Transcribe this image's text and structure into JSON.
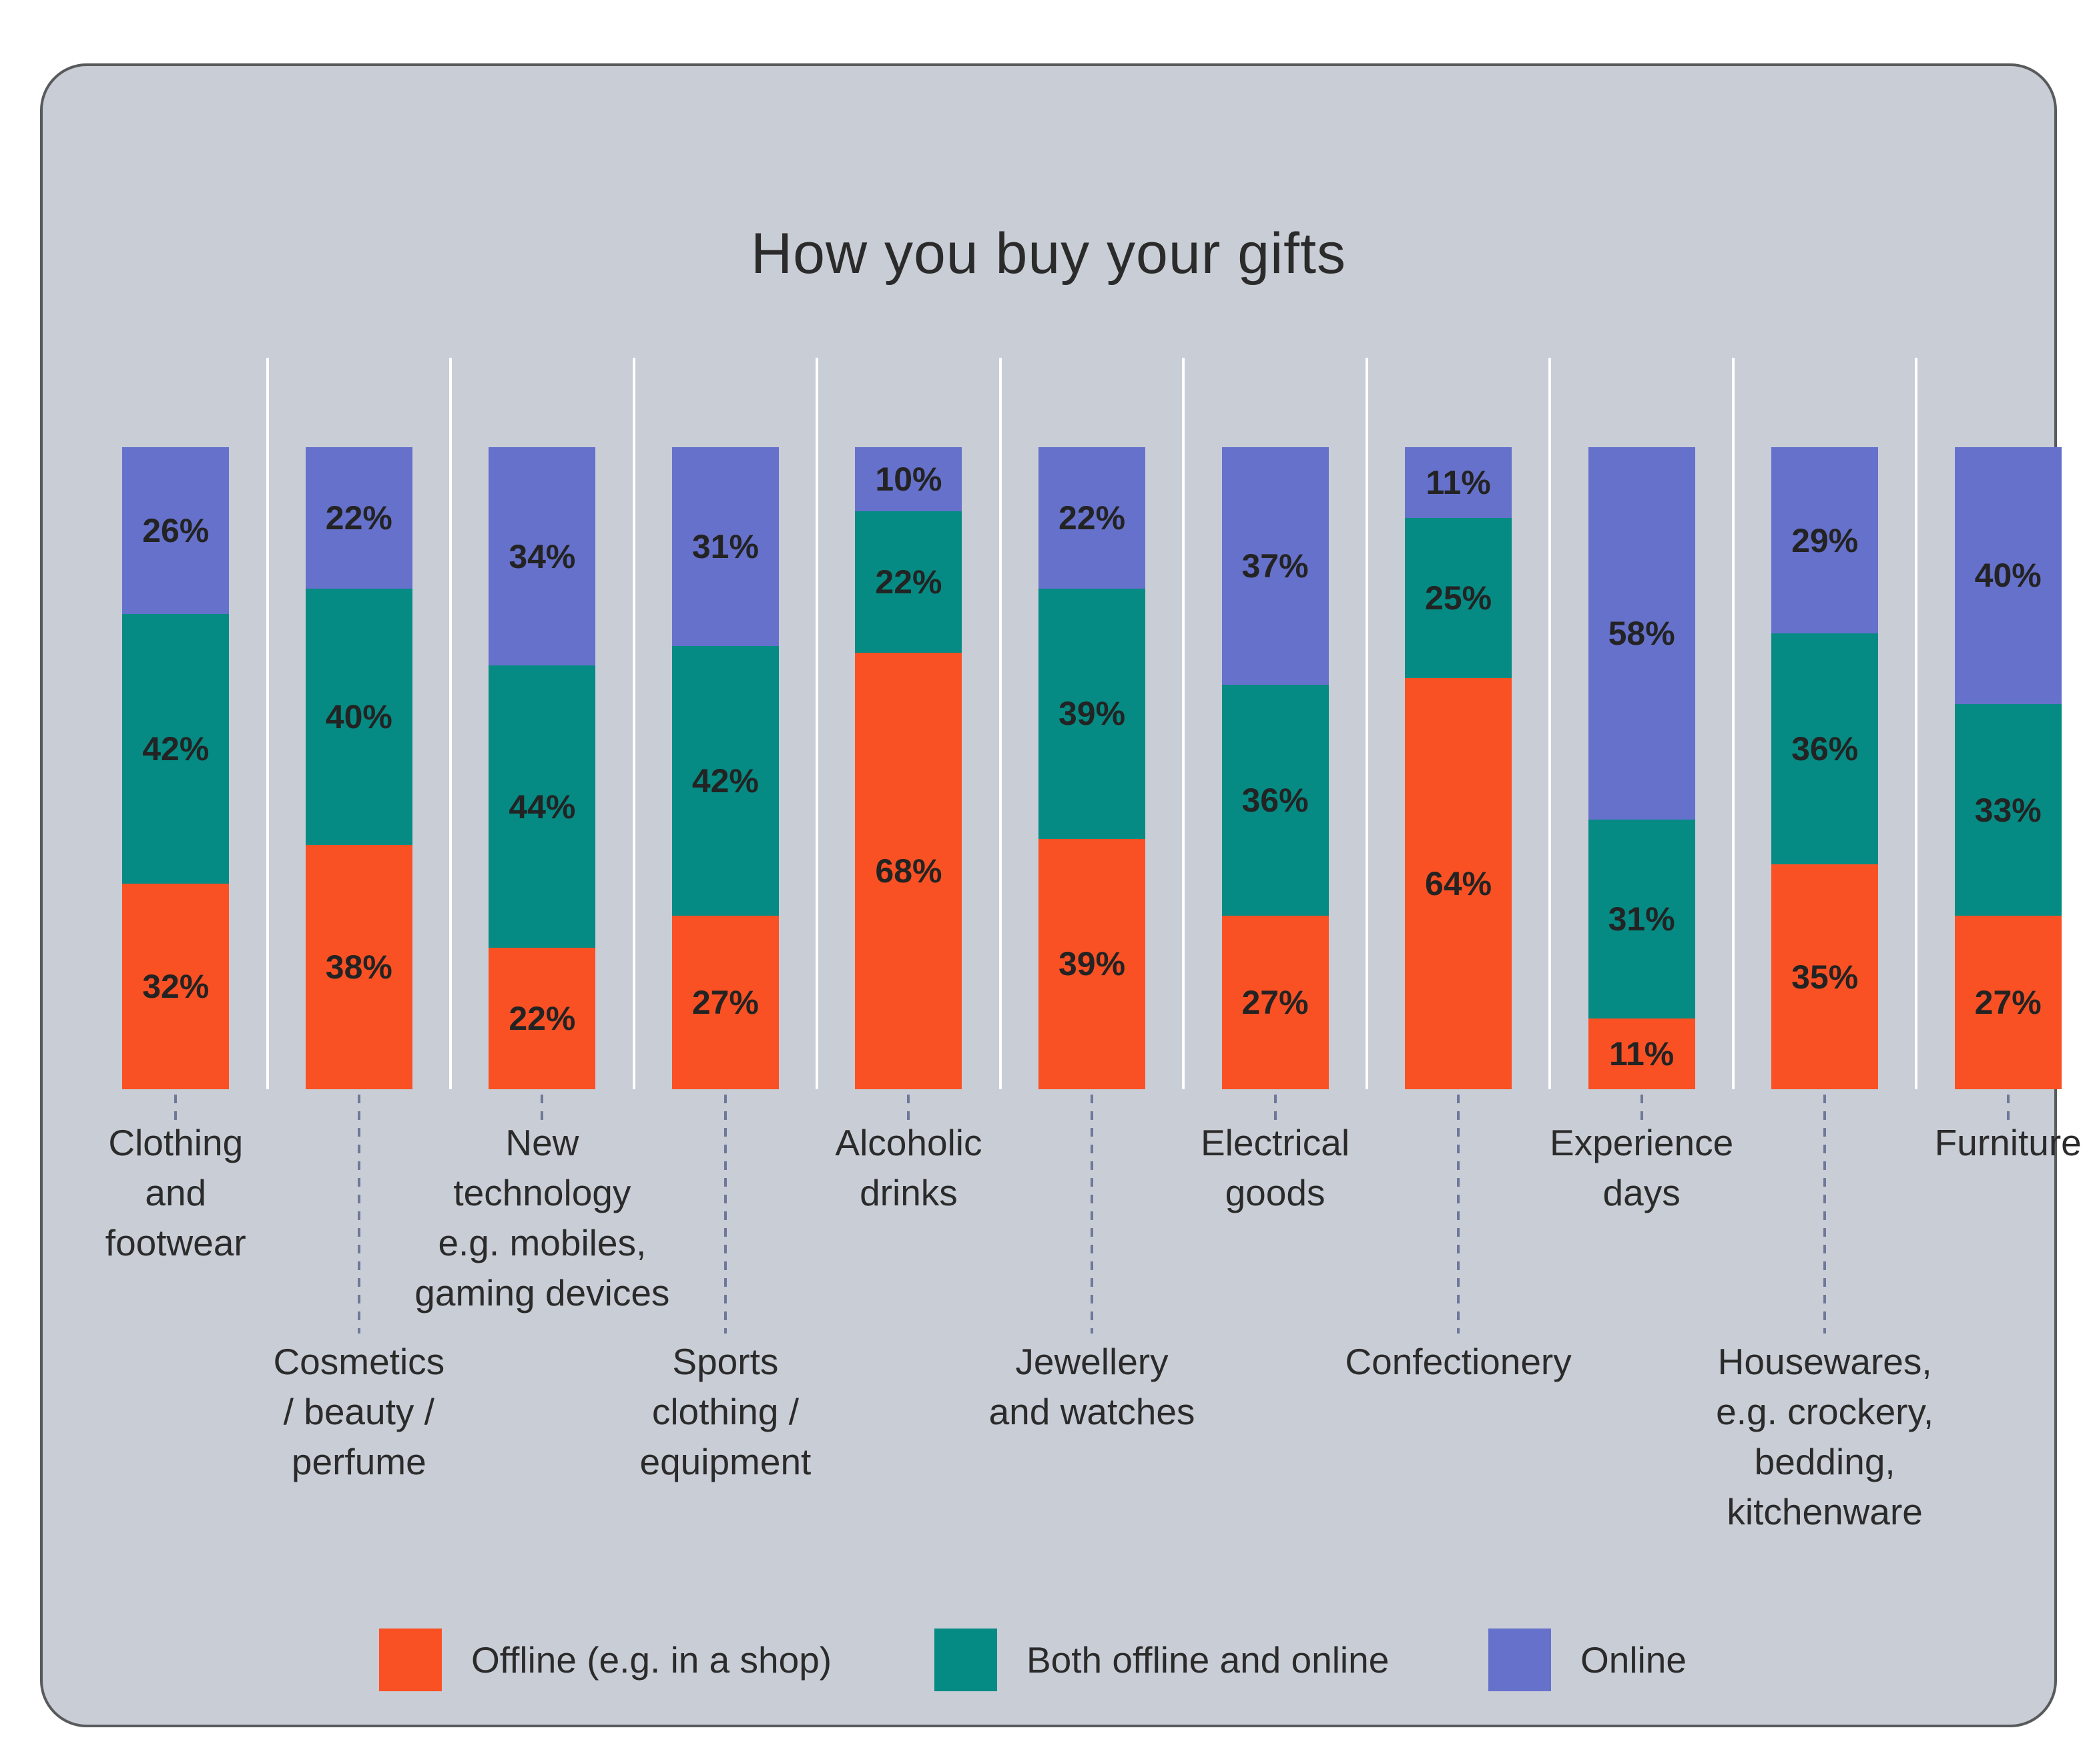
{
  "chart_data": {
    "type": "bar",
    "stacked": true,
    "percent_stacked": true,
    "title": "How you buy your gifts",
    "value_suffix": "%",
    "ylim": [
      0,
      100
    ],
    "grid": "vertical-white-separators",
    "legend_position": "bottom",
    "categories": [
      "Clothing and footwear",
      "Cosmetics / beauty / perfume",
      "New technology e.g. mobiles, gaming devices",
      "Sports clothing / equipment",
      "Alcoholic drinks",
      "Jewellery and watches",
      "Electrical goods",
      "Confectionery",
      "Experience days",
      "Housewares, e.g. crockery, bedding, kitchenware",
      "Furniture"
    ],
    "category_label_lines": [
      [
        "Clothing",
        "and",
        "footwear"
      ],
      [
        "Cosmetics",
        "/ beauty /",
        "perfume"
      ],
      [
        "New",
        "technology",
        "e.g. mobiles,",
        "gaming devices"
      ],
      [
        "Sports",
        "clothing /",
        "equipment"
      ],
      [
        "Alcoholic",
        "drinks"
      ],
      [
        "Jewellery",
        "and watches"
      ],
      [
        "Electrical",
        "goods"
      ],
      [
        "Confectionery"
      ],
      [
        "Experience",
        "days"
      ],
      [
        "Housewares,",
        "e.g. crockery,",
        "bedding,",
        "kitchenware"
      ],
      [
        "Furniture"
      ]
    ],
    "category_label_row": [
      1,
      2,
      1,
      2,
      1,
      2,
      1,
      2,
      1,
      2,
      1
    ],
    "series": [
      {
        "name": "Offline (e.g. in a shop)",
        "color": "#fa5124",
        "values": [
          32,
          38,
          22,
          27,
          68,
          39,
          27,
          64,
          11,
          35,
          27
        ]
      },
      {
        "name": "Both offline and online",
        "color": "#058b84",
        "values": [
          42,
          40,
          44,
          42,
          22,
          39,
          36,
          25,
          31,
          36,
          33
        ]
      },
      {
        "name": "Online",
        "color": "#6671cc",
        "values": [
          26,
          22,
          34,
          31,
          10,
          22,
          37,
          11,
          58,
          29,
          40
        ]
      }
    ],
    "stack_order_top_to_bottom": [
      "Online",
      "Both offline and online",
      "Offline (e.g. in a shop)"
    ],
    "colors": {
      "panel_background": "#c9cdd6",
      "panel_border": "#595a5c",
      "axis_line": "#3e3f41",
      "gridline": "#ffffff",
      "leader_line": "#6f7899",
      "text": "#2b2b2b",
      "value_label_text": "#232323"
    }
  }
}
